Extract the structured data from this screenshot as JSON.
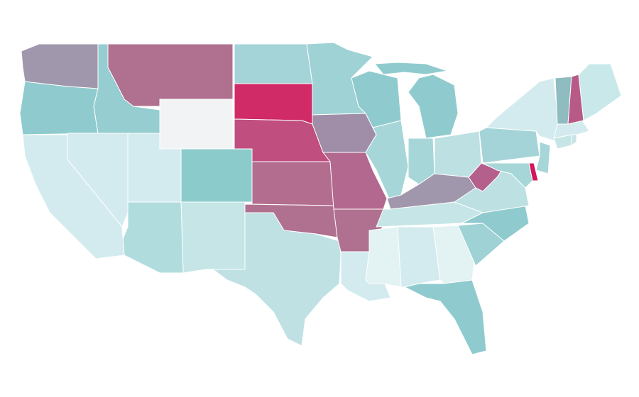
{
  "regions": [
    {
      "color": "#a097ad"
    },
    {
      "color": "#8fcbce"
    },
    {
      "color": "#95cdd0"
    },
    {
      "color": "#b0708f"
    },
    {
      "color": "#f2f3f5"
    },
    {
      "color": "#a4d4d7"
    },
    {
      "color": "#d02a67"
    },
    {
      "color": "#c04e7e"
    },
    {
      "color": "#b36d8f"
    },
    {
      "color": "#b0708f"
    },
    {
      "color": "#bfe1e3"
    },
    {
      "color": "#c6e5e6"
    },
    {
      "color": "#8ccbcc"
    },
    {
      "color": "#d3ebee"
    },
    {
      "color": "#b0dcdd"
    },
    {
      "color": "#d3ebee"
    },
    {
      "color": "#d3ebee"
    },
    {
      "color": "#9fd2d5"
    },
    {
      "color": "#a08ea8"
    },
    {
      "color": "#b3688f"
    },
    {
      "color": "#b0708f"
    },
    {
      "color": "#d3ebee"
    },
    {
      "color": "#8fcbce"
    },
    {
      "color": "#a7d6d8"
    },
    {
      "color": "#8fcbce"
    },
    {
      "color": "#a7d6d8"
    },
    {
      "color": "#bde0e2"
    },
    {
      "color": "#a097ad"
    },
    {
      "color": "#c6e5e6"
    },
    {
      "color": "#e3f2f3"
    },
    {
      "color": "#d3ebee"
    },
    {
      "color": "#e3f2f3"
    },
    {
      "color": "#8fcbce"
    },
    {
      "color": "#9fd2d5"
    },
    {
      "color": "#8fcbce"
    },
    {
      "color": "#bde0e2"
    },
    {
      "color": "#b5608c"
    },
    {
      "color": "#a4d4d7"
    },
    {
      "color": "#d3ebee"
    },
    {
      "color": "#a7d6d8"
    },
    {
      "color": "#d0195d"
    },
    {
      "color": "#a7d6d8"
    },
    {
      "color": "#c6e5e6"
    },
    {
      "color": "#c6e5e6"
    },
    {
      "color": "#d3ebee"
    },
    {
      "color": "#8fbcc0"
    },
    {
      "color": "#b85a88"
    },
    {
      "color": "#c9e8ea"
    }
  ]
}
